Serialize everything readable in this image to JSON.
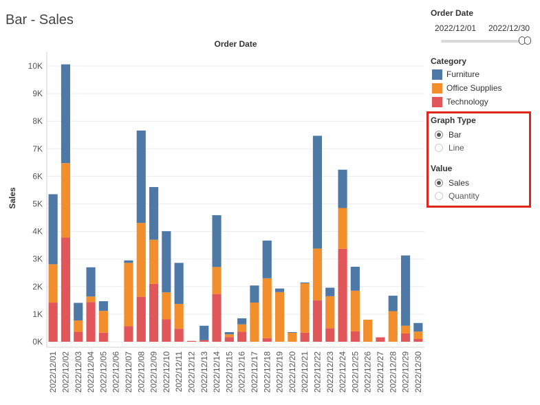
{
  "page_title": "Bar - Sales",
  "filters": {
    "order_date": {
      "label": "Order Date",
      "start": "2022/12/01",
      "end": "2022/12/30"
    }
  },
  "legend": {
    "title": "Category",
    "items": [
      {
        "label": "Furniture",
        "color": "#4e79a7"
      },
      {
        "label": "Office Supplies",
        "color": "#f28e2b"
      },
      {
        "label": "Technology",
        "color": "#e15759"
      }
    ]
  },
  "params": {
    "graph_type": {
      "label": "Graph Type",
      "options": [
        {
          "label": "Bar",
          "selected": true
        },
        {
          "label": "Line",
          "selected": false
        }
      ]
    },
    "value": {
      "label": "Value",
      "options": [
        {
          "label": "Sales",
          "selected": true
        },
        {
          "label": "Quantity",
          "selected": false
        }
      ]
    }
  },
  "chart_data": {
    "type": "bar",
    "stacked": true,
    "title": "Order Date",
    "ylabel": "Sales",
    "ylim": [
      0,
      10000
    ],
    "yticks": [
      {
        "value": 0,
        "label": "0K"
      },
      {
        "value": 1000,
        "label": "1K"
      },
      {
        "value": 2000,
        "label": "2K"
      },
      {
        "value": 3000,
        "label": "3K"
      },
      {
        "value": 4000,
        "label": "4K"
      },
      {
        "value": 5000,
        "label": "5K"
      },
      {
        "value": 6000,
        "label": "6K"
      },
      {
        "value": 7000,
        "label": "7K"
      },
      {
        "value": 8000,
        "label": "8K"
      },
      {
        "value": 9000,
        "label": "9K"
      },
      {
        "value": 10000,
        "label": "10K"
      }
    ],
    "categories": [
      "2022/12/01",
      "2022/12/02",
      "2022/12/03",
      "2022/12/04",
      "2022/12/05",
      "2022/12/06",
      "2022/12/07",
      "2022/12/08",
      "2022/12/09",
      "2022/12/10",
      "2022/12/11",
      "2022/12/12",
      "2022/12/13",
      "2022/12/14",
      "2022/12/15",
      "2022/12/16",
      "2022/12/17",
      "2022/12/18",
      "2022/12/19",
      "2022/12/20",
      "2022/12/21",
      "2022/12/22",
      "2022/12/23",
      "2022/12/24",
      "2022/12/25",
      "2022/12/26",
      "2022/12/27",
      "2022/12/28",
      "2022/12/29",
      "2022/12/30"
    ],
    "series": [
      {
        "name": "Technology",
        "color": "#e15759",
        "values": [
          1420,
          3780,
          360,
          1440,
          330,
          0,
          560,
          1630,
          2100,
          810,
          470,
          30,
          60,
          1730,
          170,
          360,
          0,
          130,
          0,
          0,
          330,
          1500,
          490,
          3370,
          380,
          0,
          160,
          0,
          300,
          100
        ]
      },
      {
        "name": "Office Supplies",
        "color": "#f28e2b",
        "values": [
          1390,
          2700,
          410,
          200,
          790,
          0,
          2300,
          2680,
          1600,
          980,
          900,
          0,
          0,
          980,
          100,
          270,
          1420,
          2170,
          1800,
          330,
          1790,
          1880,
          1160,
          1480,
          1470,
          800,
          0,
          1110,
          280,
          270
        ]
      },
      {
        "name": "Furniture",
        "color": "#4e79a7",
        "values": [
          2540,
          3580,
          640,
          1060,
          350,
          0,
          90,
          3350,
          1910,
          2220,
          1490,
          0,
          520,
          1880,
          80,
          220,
          620,
          1370,
          130,
          20,
          30,
          4090,
          310,
          1390,
          870,
          0,
          0,
          560,
          2550,
          310
        ]
      }
    ]
  }
}
